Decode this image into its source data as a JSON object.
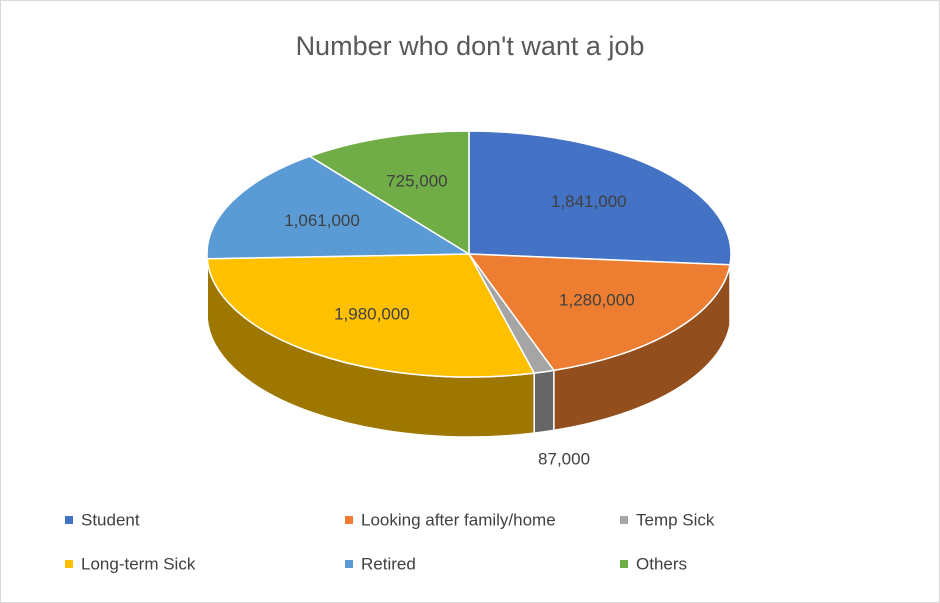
{
  "chart_data": {
    "type": "pie3d",
    "title": "Number who don't want a job",
    "categories": [
      "Student",
      "Looking after family/home",
      "Temp Sick",
      "Long-term Sick",
      "Retired",
      "Others"
    ],
    "values": [
      1841000,
      1280000,
      87000,
      1980000,
      1061000,
      725000
    ],
    "value_labels": [
      "1,841,000",
      "1,280,000",
      "87,000",
      "1,980,000",
      "1,061,000",
      "725,000"
    ],
    "colors": [
      "#4472c4",
      "#ed7d31",
      "#a5a5a5",
      "#ffc000",
      "#5b9bd5",
      "#70ad47"
    ]
  }
}
